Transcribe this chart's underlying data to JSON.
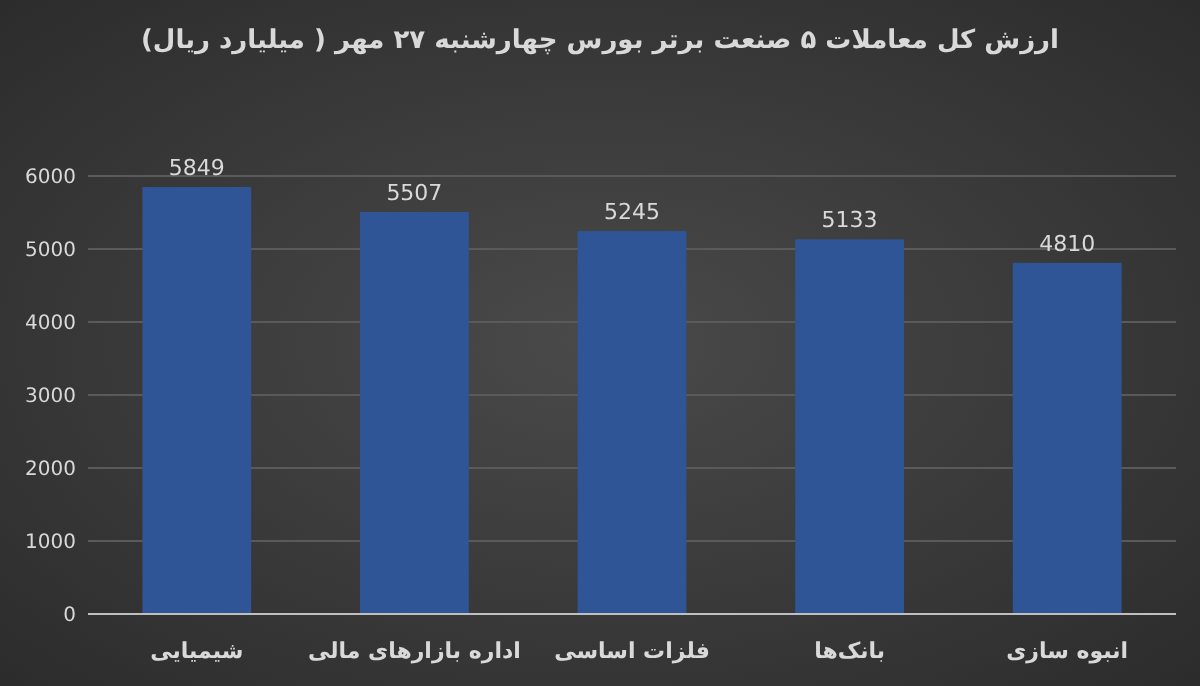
{
  "chart_data": {
    "type": "bar",
    "title": "ارزش کل معاملات ۵ صنعت برتر بورس چهارشنبه ۲۷ مهر ( میلیارد ریال)",
    "categories": [
      "شیمیایی",
      "اداره بازارهای مالی",
      "فلزات اساسی",
      "بانک‌ها",
      "انبوه سازی"
    ],
    "values": [
      5849,
      5507,
      5245,
      5133,
      4810
    ],
    "color": "#2f5597",
    "ylim": [
      0,
      6000
    ],
    "yticks": [
      0,
      1000,
      2000,
      3000,
      4000,
      5000,
      6000
    ],
    "grid": "y",
    "data_labels": true
  }
}
